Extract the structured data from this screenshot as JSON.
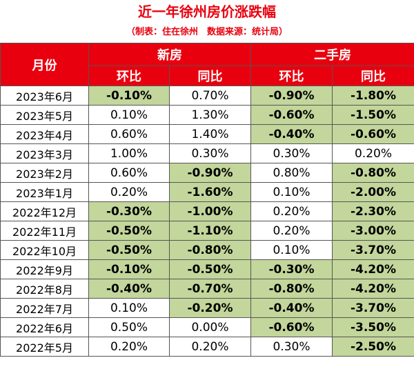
{
  "title": "近一年徐州房价涨跌幅",
  "subtitle": "（制表：住在徐州　数据来源：统计局）",
  "header": {
    "month": "月份",
    "new_house": "新房",
    "second_hand": "二手房",
    "mom": "环比",
    "yoy": "同比"
  },
  "highlight_color": "#c3d69b",
  "header_color": "#e8000e",
  "rows": [
    {
      "month": "2023年6月",
      "new_mom": "-0.10%",
      "new_yoy": "0.70%",
      "sec_mom": "-0.90%",
      "sec_yoy": "-1.80%"
    },
    {
      "month": "2023年5月",
      "new_mom": "0.10%",
      "new_yoy": "1.30%",
      "sec_mom": "-0.60%",
      "sec_yoy": "-1.50%"
    },
    {
      "month": "2023年4月",
      "new_mom": "0.60%",
      "new_yoy": "1.40%",
      "sec_mom": "-0.40%",
      "sec_yoy": "-0.60%"
    },
    {
      "month": "2023年3月",
      "new_mom": "1.00%",
      "new_yoy": "0.30%",
      "sec_mom": "0.30%",
      "sec_yoy": "0.20%"
    },
    {
      "month": "2023年2月",
      "new_mom": "0.60%",
      "new_yoy": "-0.90%",
      "sec_mom": "0.80%",
      "sec_yoy": "-0.80%"
    },
    {
      "month": "2023年1月",
      "new_mom": "0.20%",
      "new_yoy": "-1.60%",
      "sec_mom": "0.10%",
      "sec_yoy": "-2.00%"
    },
    {
      "month": "2022年12月",
      "new_mom": "-0.30%",
      "new_yoy": "-1.00%",
      "sec_mom": "0.20%",
      "sec_yoy": "-2.30%"
    },
    {
      "month": "2022年11月",
      "new_mom": "-0.50%",
      "new_yoy": "-1.10%",
      "sec_mom": "0.20%",
      "sec_yoy": "-3.00%"
    },
    {
      "month": "2022年10月",
      "new_mom": "-0.50%",
      "new_yoy": "-0.80%",
      "sec_mom": "0.10%",
      "sec_yoy": "-3.70%"
    },
    {
      "month": "2022年9月",
      "new_mom": "-0.10%",
      "new_yoy": "-0.50%",
      "sec_mom": "-0.30%",
      "sec_yoy": "-4.20%"
    },
    {
      "month": "2022年8月",
      "new_mom": "-0.40%",
      "new_yoy": "-0.70%",
      "sec_mom": "-0.80%",
      "sec_yoy": "-4.20%"
    },
    {
      "month": "2022年7月",
      "new_mom": "0.10%",
      "new_yoy": "-0.20%",
      "sec_mom": "-0.40%",
      "sec_yoy": "-3.70%"
    },
    {
      "month": "2022年6月",
      "new_mom": "0.50%",
      "new_yoy": "0.00%",
      "sec_mom": "-0.60%",
      "sec_yoy": "-3.50%"
    },
    {
      "month": "2022年5月",
      "new_mom": "0.20%",
      "new_yoy": "0.20%",
      "sec_mom": "0.30%",
      "sec_yoy": "-2.50%"
    }
  ]
}
